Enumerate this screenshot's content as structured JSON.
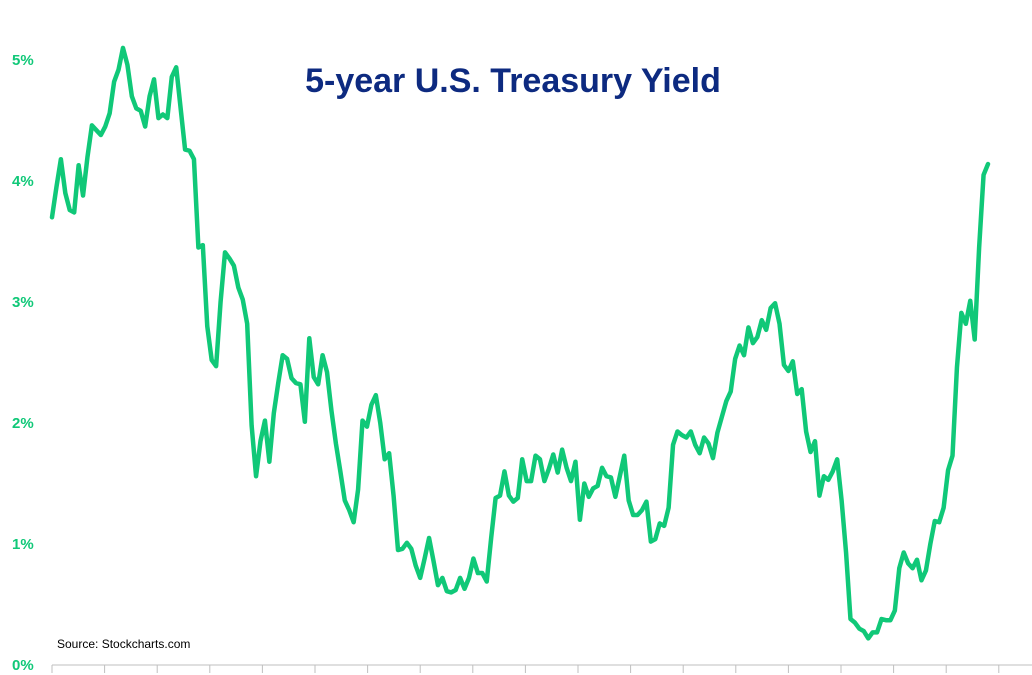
{
  "chart_data": {
    "type": "line",
    "title": "5-year U.S. Treasury Yield",
    "source": "Source: Stockcharts.com",
    "xlabel": "",
    "ylabel": "",
    "ylim": [
      0,
      5
    ],
    "y_ticks": [
      {
        "value": 0,
        "label": "0%"
      },
      {
        "value": 1,
        "label": "1%"
      },
      {
        "value": 2,
        "label": "2%"
      },
      {
        "value": 3,
        "label": "3%"
      },
      {
        "value": 4,
        "label": "4%"
      },
      {
        "value": 5,
        "label": "5%"
      }
    ],
    "x_tick_count": 19,
    "grid": false,
    "legend": "none",
    "colors": {
      "line": "#10c878",
      "axis_labels": "#10c878",
      "title": "#0d2a80",
      "source": "#000000",
      "axis": "#bfbfbf"
    },
    "series": [
      {
        "values": [
          3.7,
          3.95,
          4.18,
          3.9,
          3.76,
          3.74,
          4.13,
          3.88,
          4.2,
          4.46,
          4.42,
          4.38,
          4.45,
          4.56,
          4.82,
          4.92,
          5.1,
          4.96,
          4.7,
          4.6,
          4.58,
          4.45,
          4.7,
          4.84,
          4.52,
          4.55,
          4.52,
          4.86,
          4.94,
          4.6,
          4.26,
          4.25,
          4.18,
          3.45,
          3.47,
          2.8,
          2.52,
          2.47,
          3.0,
          3.41,
          3.36,
          3.3,
          3.12,
          3.02,
          2.82,
          1.98,
          1.56,
          1.85,
          2.02,
          1.68,
          2.08,
          2.33,
          2.56,
          2.53,
          2.37,
          2.33,
          2.32,
          2.01,
          2.7,
          2.38,
          2.32,
          2.56,
          2.42,
          2.1,
          1.83,
          1.6,
          1.36,
          1.28,
          1.18,
          1.45,
          2.02,
          1.97,
          2.15,
          2.23,
          2.0,
          1.7,
          1.75,
          1.4,
          0.95,
          0.96,
          1.01,
          0.96,
          0.82,
          0.72,
          0.88,
          1.05,
          0.86,
          0.66,
          0.72,
          0.61,
          0.6,
          0.62,
          0.72,
          0.63,
          0.72,
          0.88,
          0.76,
          0.76,
          0.69,
          1.05,
          1.38,
          1.4,
          1.6,
          1.4,
          1.35,
          1.38,
          1.7,
          1.52,
          1.52,
          1.73,
          1.7,
          1.52,
          1.62,
          1.74,
          1.59,
          1.78,
          1.63,
          1.52,
          1.68,
          1.2,
          1.5,
          1.39,
          1.46,
          1.48,
          1.63,
          1.56,
          1.55,
          1.39,
          1.56,
          1.73,
          1.36,
          1.24,
          1.24,
          1.28,
          1.35,
          1.02,
          1.04,
          1.17,
          1.15,
          1.3,
          1.82,
          1.93,
          1.9,
          1.88,
          1.93,
          1.82,
          1.75,
          1.88,
          1.83,
          1.71,
          1.92,
          2.05,
          2.18,
          2.26,
          2.53,
          2.64,
          2.56,
          2.79,
          2.66,
          2.71,
          2.85,
          2.77,
          2.95,
          2.99,
          2.82,
          2.48,
          2.43,
          2.51,
          2.24,
          2.28,
          1.93,
          1.76,
          1.85,
          1.4,
          1.56,
          1.53,
          1.6,
          1.7,
          1.36,
          0.93,
          0.38,
          0.35,
          0.3,
          0.28,
          0.22,
          0.27,
          0.27,
          0.38,
          0.37,
          0.37,
          0.45,
          0.8,
          0.93,
          0.84,
          0.8,
          0.87,
          0.7,
          0.78,
          1.0,
          1.19,
          1.18,
          1.3,
          1.61,
          1.73,
          2.46,
          2.91,
          2.82,
          3.01,
          2.69,
          3.45,
          4.05,
          4.14
        ]
      }
    ]
  }
}
